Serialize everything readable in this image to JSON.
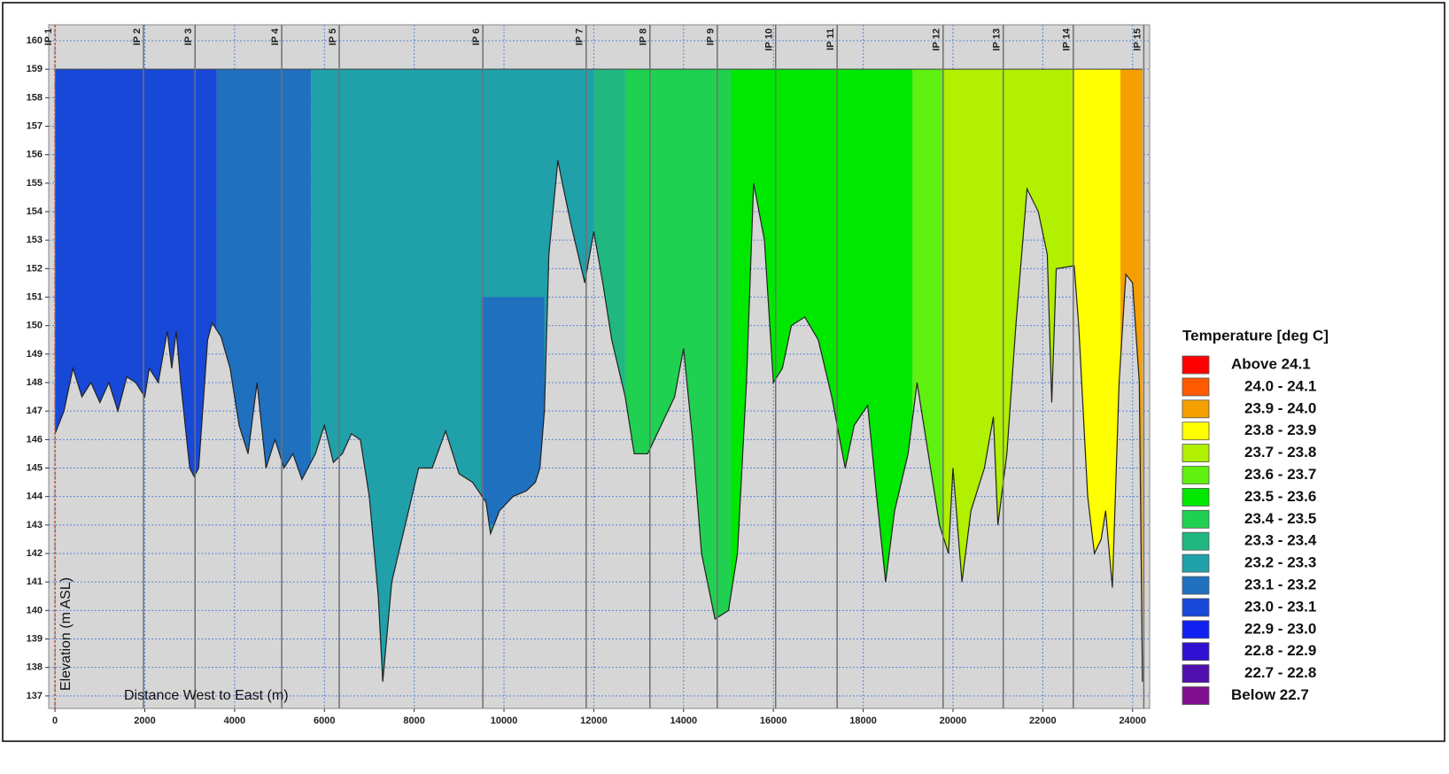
{
  "chart_data": {
    "type": "profile",
    "xlabel": "Distance West to East (m)",
    "ylabel": "Elevation (m ASL)",
    "xlim": [
      -140,
      24380
    ],
    "ylim": [
      136.56,
      160.56
    ],
    "xticks": [
      0,
      2000,
      4000,
      6000,
      8000,
      10000,
      12000,
      14000,
      16000,
      18000,
      20000,
      22000,
      24000
    ],
    "yticks": [
      137,
      138,
      139,
      140,
      141,
      142,
      143,
      144,
      145,
      146,
      147,
      148,
      149,
      150,
      151,
      152,
      153,
      154,
      155,
      156,
      157,
      158,
      159,
      160
    ],
    "grid": true,
    "surface": 159,
    "stations": {
      "names": [
        "IP 1",
        "IP 2",
        "IP 3",
        "IP 4",
        "IP 5",
        "IP 6",
        "IP 7",
        "IP 8",
        "IP 9",
        "IP 10",
        "IP 11",
        "IP 12",
        "IP 13",
        "IP 14",
        "IP 15"
      ],
      "x": [
        0,
        1970,
        3120,
        5050,
        6330,
        9530,
        11830,
        13250,
        14750,
        16050,
        17420,
        19780,
        21120,
        22680,
        24250
      ]
    },
    "ground": {
      "x": [
        0,
        200,
        400,
        600,
        800,
        1000,
        1200,
        1400,
        1600,
        1800,
        2000,
        2100,
        2300,
        2500,
        2600,
        2700,
        2800,
        3000,
        3100,
        3200,
        3400,
        3500,
        3700,
        3900,
        4100,
        4300,
        4500,
        4700,
        4900,
        5100,
        5300,
        5500,
        5800,
        6000,
        6200,
        6400,
        6600,
        6800,
        7000,
        7200,
        7300,
        7500,
        7800,
        8100,
        8400,
        8700,
        9000,
        9300,
        9600,
        9700,
        9900,
        10200,
        10500,
        10700,
        10800,
        10900,
        11000,
        11200,
        11300,
        11500,
        11800,
        12000,
        12200,
        12400,
        12700,
        12900,
        13200,
        13500,
        13800,
        14000,
        14200,
        14400,
        14700,
        15000,
        15200,
        15400,
        15560,
        15800,
        16000,
        16200,
        16400,
        16700,
        17000,
        17300,
        17600,
        17800,
        18100,
        18300,
        18500,
        18700,
        19000,
        19200,
        19400,
        19700,
        19900,
        20000,
        20200,
        20400,
        20700,
        20900,
        21000,
        21200,
        21400,
        21650,
        21900,
        22100,
        22200,
        22300,
        22700,
        22800,
        23000,
        23150,
        23300,
        23400,
        23550,
        23700,
        23850,
        24000,
        24150,
        24220
      ],
      "elevation": [
        146.2,
        147,
        148.5,
        147.5,
        148,
        147.3,
        148,
        147,
        148.2,
        148,
        147.5,
        148.5,
        148,
        149.8,
        148.5,
        149.8,
        148,
        145,
        144.7,
        145,
        149.5,
        150.1,
        149.6,
        148.5,
        146.5,
        145.5,
        148,
        145,
        146,
        145,
        145.5,
        144.6,
        145.5,
        146.5,
        145.2,
        145.5,
        146.2,
        146,
        144,
        140.5,
        137.5,
        141,
        143,
        145,
        145,
        146.3,
        144.8,
        144.5,
        143.8,
        142.7,
        143.5,
        144,
        144.2,
        144.5,
        145,
        147,
        152.5,
        155.8,
        155,
        153.5,
        151.5,
        153.3,
        151.5,
        149.5,
        147.5,
        145.5,
        145.5,
        146.5,
        147.5,
        149.2,
        146,
        142,
        139.7,
        140,
        142,
        148,
        155,
        153,
        148,
        148.5,
        150,
        150.3,
        149.5,
        147.5,
        145,
        146.5,
        147.2,
        144,
        141,
        143.5,
        145.5,
        148,
        146,
        143,
        142,
        145,
        141,
        143.5,
        145,
        146.8,
        143,
        145.5,
        150,
        154.8,
        154,
        152.5,
        147.3,
        152,
        152.1,
        150,
        144,
        142,
        142.5,
        143.5,
        140.8,
        148,
        151.8,
        151.5,
        148,
        137.5
      ]
    },
    "zones": [
      {
        "x0": 0,
        "x1": 3600,
        "color": "#1848d8"
      },
      {
        "x0": 3600,
        "x1": 5700,
        "color": "#2070c0"
      },
      {
        "x0": 5700,
        "x1": 12000,
        "color": "#20a0a8"
      },
      {
        "x0": 9500,
        "x1": 10900,
        "y0": 143,
        "y1": 151,
        "color": "#2070c0"
      },
      {
        "x0": 12000,
        "x1": 12700,
        "color": "#20b880"
      },
      {
        "x0": 12700,
        "x1": 15050,
        "color": "#20d050"
      },
      {
        "x0": 15050,
        "x1": 19100,
        "color": "#00e800"
      },
      {
        "x0": 19100,
        "x1": 19800,
        "color": "#60f010"
      },
      {
        "x0": 19800,
        "x1": 22700,
        "color": "#b0f000"
      },
      {
        "x0": 22700,
        "x1": 23730,
        "color": "#ffff00"
      },
      {
        "x0": 23730,
        "x1": 24250,
        "color": "#f5a000"
      }
    ],
    "legend": {
      "title": "Temperature [deg C]",
      "entries": [
        {
          "label": "Above 24.1",
          "color": "#ff0000"
        },
        {
          "label": "24.0 - 24.1",
          "color": "#ff5a00"
        },
        {
          "label": "23.9 - 24.0",
          "color": "#f5a000"
        },
        {
          "label": "23.8 - 23.9",
          "color": "#ffff00"
        },
        {
          "label": "23.7 - 23.8",
          "color": "#b0f000"
        },
        {
          "label": "23.6 - 23.7",
          "color": "#60f010"
        },
        {
          "label": "23.5 - 23.6",
          "color": "#00e800"
        },
        {
          "label": "23.4 - 23.5",
          "color": "#20d050"
        },
        {
          "label": "23.3 - 23.4",
          "color": "#20b880"
        },
        {
          "label": "23.2 - 23.3",
          "color": "#20a0a8"
        },
        {
          "label": "23.1 - 23.2",
          "color": "#2070c0"
        },
        {
          "label": "23.0 - 23.1",
          "color": "#1848d8"
        },
        {
          "label": "22.9 - 23.0",
          "color": "#1020f0"
        },
        {
          "label": "22.8 - 22.9",
          "color": "#3010d0"
        },
        {
          "label": "22.7 - 22.8",
          "color": "#5010b0"
        },
        {
          "label": "Below 22.7",
          "color": "#801090"
        }
      ]
    }
  }
}
